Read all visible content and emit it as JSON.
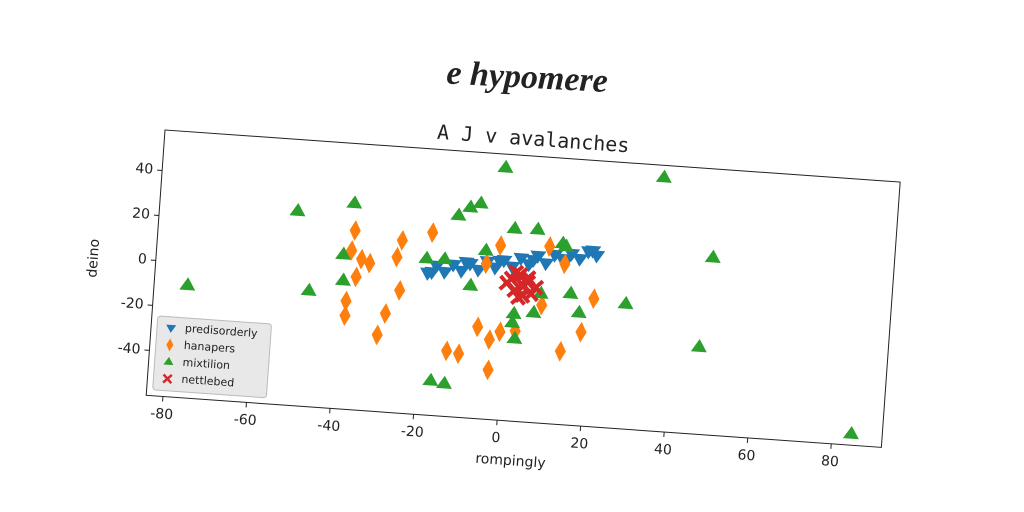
{
  "chart_data": {
    "type": "scatter",
    "suptitle": "e hypomere",
    "title": "A J v avalanches",
    "xlabel": "rompingly",
    "ylabel": "deino",
    "xlim": [
      -84,
      92
    ],
    "ylim": [
      -60,
      58
    ],
    "xticks": [
      -80,
      -60,
      -40,
      -20,
      0,
      20,
      40,
      60,
      80
    ],
    "yticks": [
      -40,
      -20,
      0,
      20,
      40
    ],
    "legend": "lower left",
    "series": [
      {
        "name": "predisorderly",
        "color": "#1f77b4",
        "marker": "triangle-down",
        "x": [
          -19,
          -17,
          -15,
          -13,
          -11,
          -9,
          -7,
          -5,
          -3,
          -1,
          1,
          3,
          5,
          7,
          9,
          11,
          13,
          15,
          17,
          19,
          21,
          -18,
          -10,
          -2,
          6,
          14,
          20
        ],
        "values": [
          3,
          6.5,
          4,
          7.5,
          5,
          8.5,
          6,
          10,
          7.5,
          11,
          8.5,
          12.5,
          10,
          14,
          11,
          15,
          13,
          16,
          14,
          17.5,
          16,
          3.5,
          9,
          10.5,
          12,
          13.5,
          18
        ]
      },
      {
        "name": "hanapers",
        "color": "#ff7f0e",
        "marker": "thin-diamond",
        "x": [
          -37,
          -37.5,
          -35,
          -33,
          -36,
          -38,
          -38,
          -28.4,
          -30,
          -25.6,
          -26.6,
          -25.4,
          -18.5,
          -13.2,
          -10.3,
          -6.2,
          -3.2,
          -0.8,
          -3,
          -2.1,
          -5.2,
          9.6,
          13.5,
          8.7,
          21,
          18.5,
          13.9,
          2.8
        ],
        "values": [
          19.5,
          10.5,
          7,
          5.5,
          -1,
          -12,
          -18.5,
          -16.3,
          -26,
          16.6,
          9,
          -5.6,
          21,
          -30.9,
          -31.8,
          -19.3,
          -24.6,
          -20.8,
          -38,
          17.4,
          8.9,
          18.5,
          11.3,
          -7.7,
          -3.2,
          -18.4,
          -27.5,
          -20
        ]
      },
      {
        "name": "mixtilion",
        "color": "#2ca02c",
        "marker": "triangle-up",
        "x": [
          -76,
          -51,
          -47,
          -37.6,
          -39.4,
          -39,
          -16.5,
          -13.2,
          -12.6,
          -9.9,
          -7.5,
          -2.2,
          -8.6,
          -5.5,
          1,
          6.5,
          12.7,
          8.3,
          2.2,
          2,
          2.8,
          6.9,
          15.4,
          17.7,
          28.7,
          35.7,
          48.7,
          46.9,
          84.6,
          -19.5,
          -15.2,
          13.5
        ],
        "values": [
          -10,
          26.3,
          -8.6,
          31.5,
          8.5,
          -3,
          -44.6,
          -45.5,
          29.4,
          33.3,
          35.4,
          52,
          -1.3,
          14.7,
          25.3,
          25.6,
          20.2,
          -2.6,
          -12.4,
          -16.4,
          -23.4,
          -11.3,
          -1.7,
          -9.9,
          -4.5,
          52.6,
          18.7,
          -21.3,
          -55,
          9.3,
          9.6,
          19
        ]
      },
      {
        "name": "nettlebed",
        "color": "#d62728",
        "marker": "x",
        "x": [
          1,
          3,
          5,
          2,
          4,
          6,
          0,
          3,
          5,
          2,
          4,
          7
        ],
        "values": [
          3,
          5,
          2,
          -2,
          0,
          -3,
          1,
          -5,
          4,
          6,
          -4,
          0
        ]
      }
    ]
  }
}
